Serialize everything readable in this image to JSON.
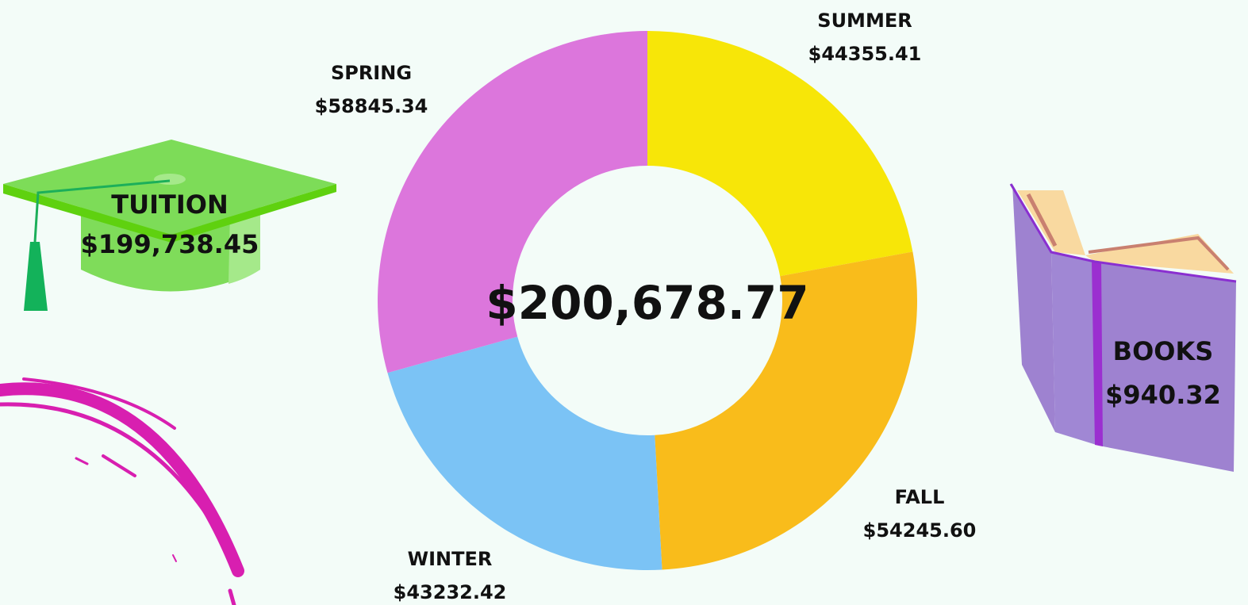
{
  "chart_data": {
    "type": "donut",
    "categories": [
      "SUMMER",
      "FALL",
      "WINTER",
      "SPRING"
    ],
    "values": [
      44355.41,
      54245.6,
      43232.42,
      58845.34
    ],
    "value_labels": [
      "$44355.41",
      "$54245.60",
      "$43232.42",
      "$58845.34"
    ],
    "colors": [
      "#f7e608",
      "#f9bc1b",
      "#7bc3f5",
      "#dc76dc"
    ],
    "center_label": "$200,678.77"
  },
  "tuition": {
    "label": "TUITION",
    "amount": "$199,738.45"
  },
  "books": {
    "label": "BOOKS",
    "amount": "$940.32"
  }
}
